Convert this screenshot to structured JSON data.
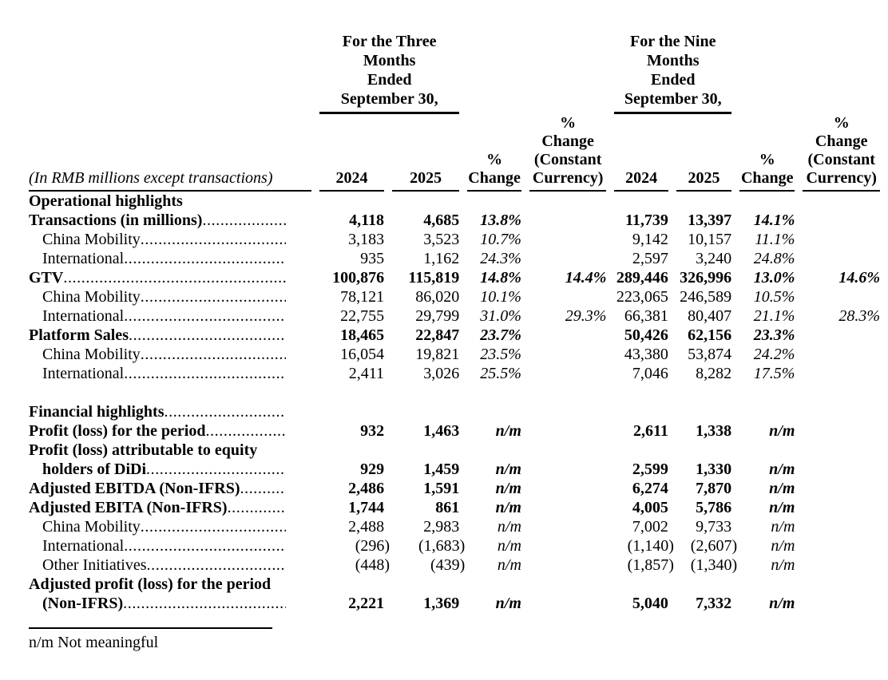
{
  "page": {
    "background": "#ffffff",
    "text_color": "#000000"
  },
  "table": {
    "unit_note": "(In RMB millions except transactions)",
    "groups": [
      {
        "title": "For the Three\nMonths\nEnded\nSeptember 30,"
      },
      {
        "title": "For the Nine\nMonths\nEnded\nSeptember 30,"
      }
    ],
    "columns": [
      "2024",
      "2025",
      "%\nChange",
      "%\nChange\n(Constant\nCurrency)",
      "2024",
      "2025",
      "%\nChange",
      "%\nChange\n(Constant\nCurrency)"
    ],
    "rows": [
      {
        "label": "Operational highlights",
        "bold": true,
        "dots": false
      },
      {
        "label": "Transactions (in millions)",
        "bold": true,
        "dots": true,
        "values": [
          "4,118",
          "4,685",
          "13.8%",
          "",
          "11,739",
          "13,397",
          "14.1%",
          ""
        ]
      },
      {
        "label": "China Mobility",
        "indent": true,
        "dots": true,
        "values": [
          "3,183",
          "3,523",
          "10.7%",
          "",
          "9,142",
          "10,157",
          "11.1%",
          ""
        ]
      },
      {
        "label": "International",
        "indent": true,
        "dots": true,
        "values": [
          "935",
          "1,162",
          "24.3%",
          "",
          "2,597",
          "3,240",
          "24.8%",
          ""
        ]
      },
      {
        "label": "GTV",
        "bold": true,
        "dots": true,
        "values": [
          "100,876",
          "115,819",
          "14.8%",
          "14.4%",
          "289,446",
          "326,996",
          "13.0%",
          "14.6%"
        ]
      },
      {
        "label": "China Mobility",
        "indent": true,
        "dots": true,
        "values": [
          "78,121",
          "86,020",
          "10.1%",
          "",
          "223,065",
          "246,589",
          "10.5%",
          ""
        ]
      },
      {
        "label": "International",
        "indent": true,
        "dots": true,
        "values": [
          "22,755",
          "29,799",
          "31.0%",
          "29.3%",
          "66,381",
          "80,407",
          "21.1%",
          "28.3%"
        ]
      },
      {
        "label": "Platform Sales",
        "bold": true,
        "dots": true,
        "values": [
          "18,465",
          "22,847",
          "23.7%",
          "",
          "50,426",
          "62,156",
          "23.3%",
          ""
        ]
      },
      {
        "label": "China Mobility",
        "indent": true,
        "dots": true,
        "values": [
          "16,054",
          "19,821",
          "23.5%",
          "",
          "43,380",
          "53,874",
          "24.2%",
          ""
        ]
      },
      {
        "label": "International",
        "indent": true,
        "dots": true,
        "values": [
          "2,411",
          "3,026",
          "25.5%",
          "",
          "7,046",
          "8,282",
          "17.5%",
          ""
        ]
      },
      {
        "spacer": true
      },
      {
        "label": "Financial highlights",
        "bold": true,
        "dots": true
      },
      {
        "label": "Profit (loss) for the period",
        "bold": true,
        "dots": true,
        "values": [
          "932",
          "1,463",
          "n/m",
          "",
          "2,611",
          "1,338",
          "n/m",
          ""
        ]
      },
      {
        "label": "Profit (loss) attributable to equity",
        "bold": true,
        "dots": false
      },
      {
        "label": "holders of DiDi",
        "bold": true,
        "indent": true,
        "dots": true,
        "values": [
          "929",
          "1,459",
          "n/m",
          "",
          "2,599",
          "1,330",
          "n/m",
          ""
        ]
      },
      {
        "label": "Adjusted EBITDA (Non-IFRS)",
        "bold": true,
        "dots": true,
        "values": [
          "2,486",
          "1,591",
          "n/m",
          "",
          "6,274",
          "7,870",
          "n/m",
          ""
        ]
      },
      {
        "label": "Adjusted EBITA (Non-IFRS)",
        "bold": true,
        "dots": true,
        "values": [
          "1,744",
          "861",
          "n/m",
          "",
          "4,005",
          "5,786",
          "n/m",
          ""
        ]
      },
      {
        "label": "China Mobility",
        "indent": true,
        "dots": true,
        "values": [
          "2,488",
          "2,983",
          "n/m",
          "",
          "7,002",
          "9,733",
          "n/m",
          ""
        ]
      },
      {
        "label": "International",
        "indent": true,
        "dots": true,
        "values": [
          "(296)",
          "(1,683)",
          "n/m",
          "",
          "(1,140)",
          "(2,607)",
          "n/m",
          ""
        ]
      },
      {
        "label": "Other Initiatives",
        "indent": true,
        "dots": true,
        "values": [
          "(448)",
          "(439)",
          "n/m",
          "",
          "(1,857)",
          "(1,340)",
          "n/m",
          ""
        ]
      },
      {
        "label": "Adjusted profit (loss) for the period",
        "bold": true,
        "dots": false
      },
      {
        "label": "(Non-IFRS)",
        "bold": true,
        "indent": true,
        "dots": true,
        "values": [
          "2,221",
          "1,369",
          "n/m",
          "",
          "5,040",
          "7,332",
          "n/m",
          ""
        ]
      }
    ],
    "footnote": "n/m Not meaningful"
  }
}
